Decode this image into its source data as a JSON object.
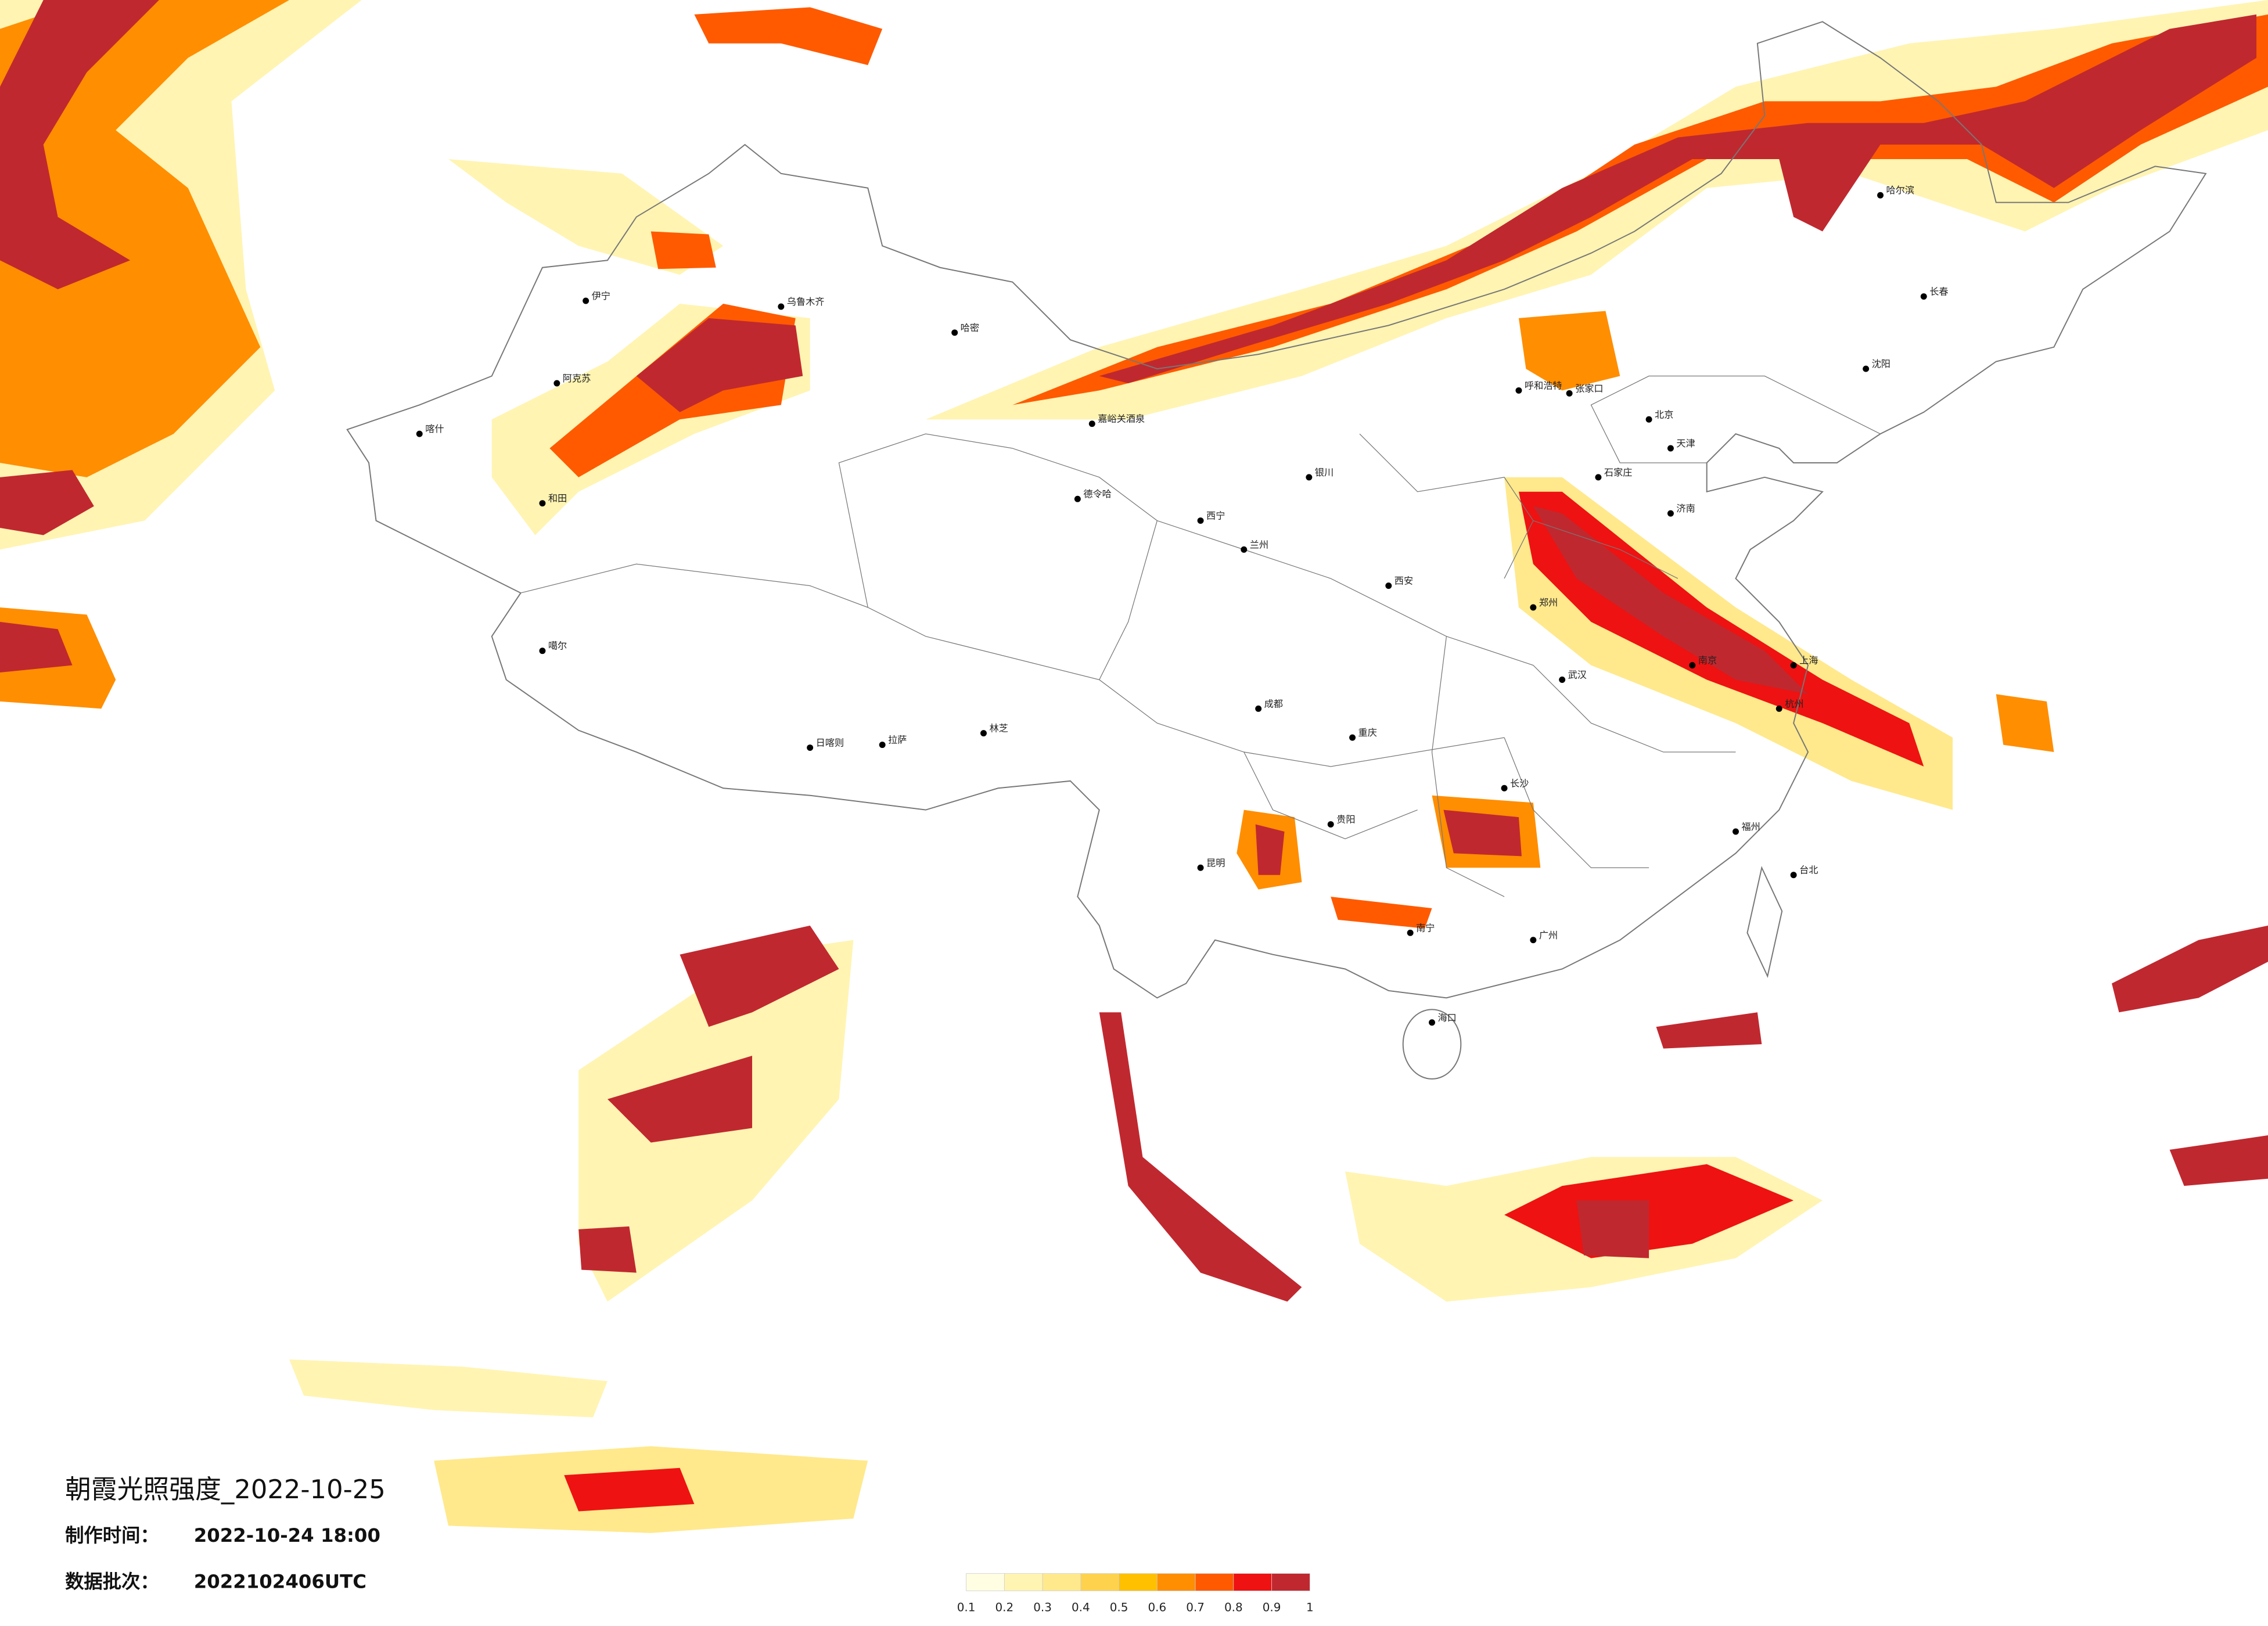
{
  "header": {
    "title": "朝霞光照强度_2022-10-25",
    "made_label": "制作时间：",
    "made_time": "2022-10-24 18:00",
    "batch_label": "数据批次：",
    "batch": "2022102406UTC"
  },
  "legend": {
    "colors": [
      "#fffde2",
      "#fff4b2",
      "#ffe98c",
      "#ffd24e",
      "#ffc000",
      "#ff8e00",
      "#ff5a00",
      "#ee1212",
      "#c0282f"
    ],
    "ticks": [
      0.1,
      0.2,
      0.3,
      0.4,
      0.5,
      0.6,
      0.7,
      0.8,
      0.9,
      1
    ]
  },
  "cities": [
    "伊宁",
    "阿克苏",
    "喀什",
    "和田",
    "乌鲁木齐",
    "哈密",
    "噶尔",
    "德令哈",
    "嘉峪关酒泉",
    "日喀则",
    "拉萨",
    "林芝",
    "西宁",
    "兰州",
    "银川",
    "呼和浩特",
    "北京",
    "天津",
    "石家庄",
    "济南",
    "郑州",
    "西安",
    "成都",
    "重庆",
    "武汉",
    "南京",
    "上海",
    "杭州",
    "长沙",
    "贵阳",
    "昆明",
    "南宁",
    "广州",
    "福州",
    "台北",
    "海口",
    "哈尔滨",
    "长春",
    "沈阳",
    "张家口"
  ]
}
